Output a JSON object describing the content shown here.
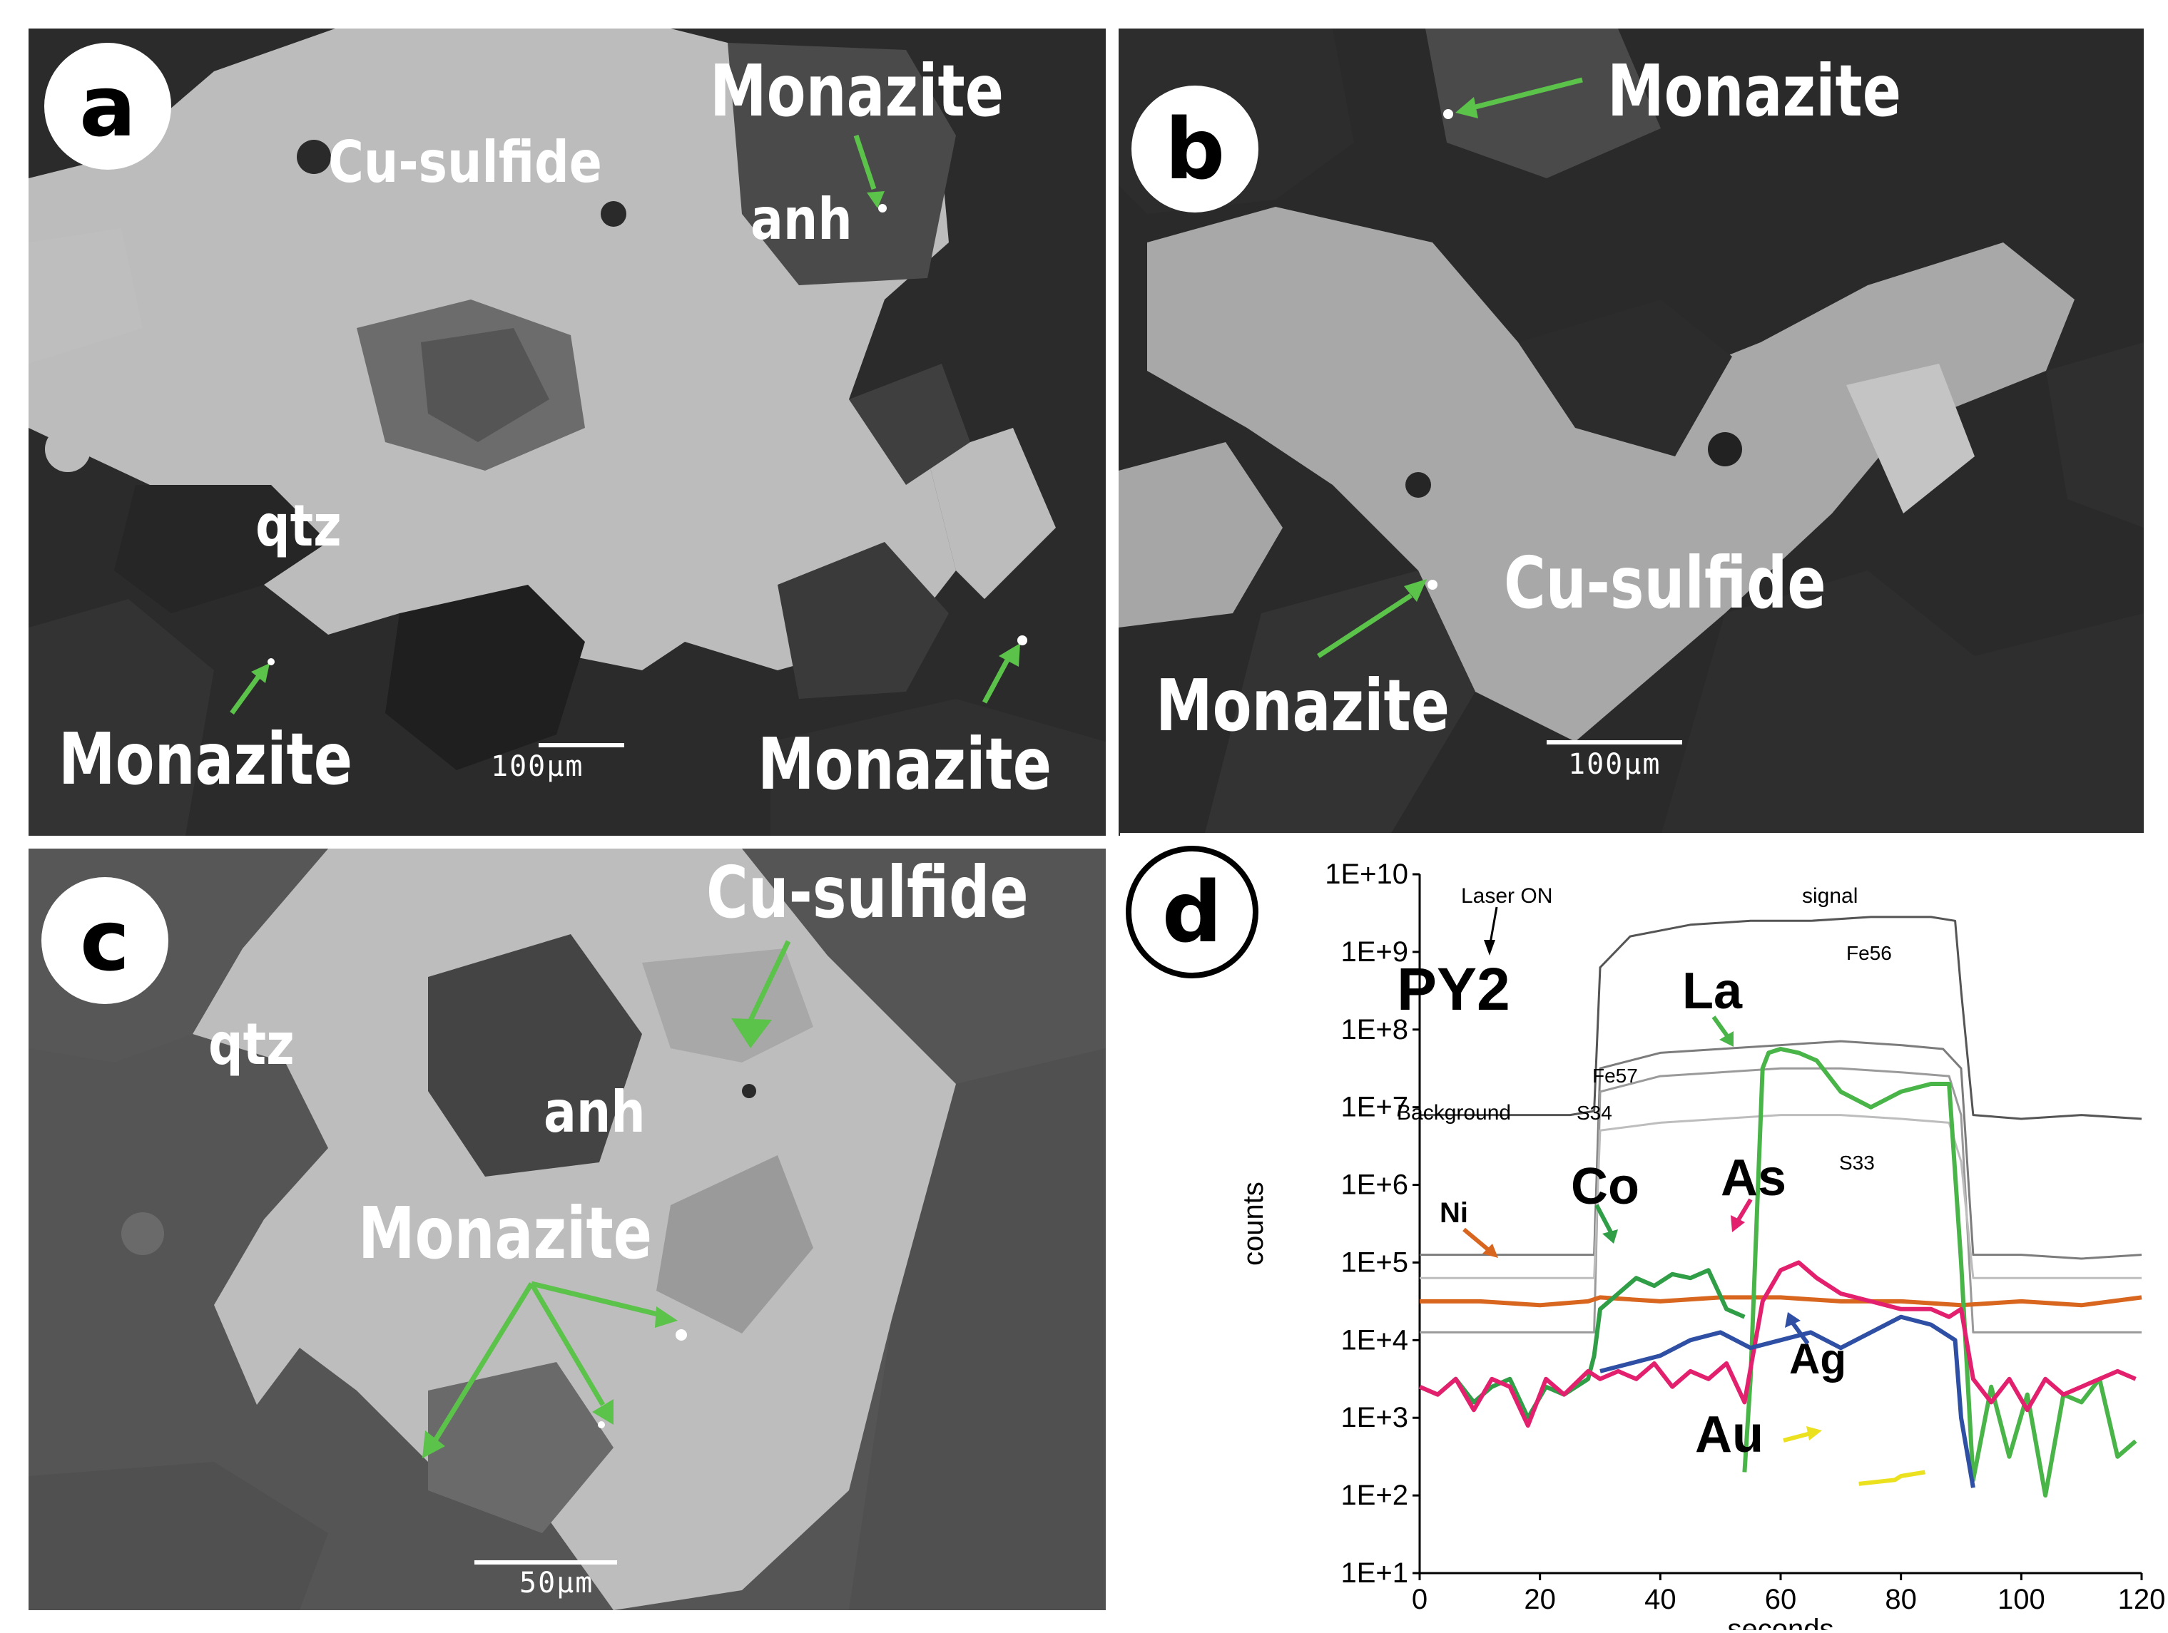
{
  "colors": {
    "label_text": "#ffffff",
    "arrow_green": "#5bc24a",
    "sulfide": "#bdbdbd",
    "dark_matrix": "#2c2c2c",
    "mid_grey": "#555555"
  },
  "panels": {
    "a": {
      "letter": "a",
      "labels": {
        "cu_sulfide": "Cu-sulfide",
        "monazite_top": "Monazite",
        "anh": "anh",
        "qtz": "qtz",
        "monazite_bl": "Monazite",
        "monazite_br": "Monazite"
      },
      "scale": "100μm"
    },
    "b": {
      "letter": "b",
      "labels": {
        "monazite_top": "Monazite",
        "cu_sulfide": "Cu-sulfide",
        "monazite_bl": "Monazite"
      },
      "scale": "100μm"
    },
    "c": {
      "letter": "c",
      "labels": {
        "cu_sulfide": "Cu-sulfide",
        "qtz": "qtz",
        "anh": "anh",
        "monazite": "Monazite"
      },
      "scale": "50μm"
    },
    "d": {
      "letter": "d",
      "sample": "PY2",
      "annotations": {
        "laser_on": "Laser ON",
        "signal": "signal",
        "background": "Background",
        "fe56": "Fe56",
        "fe57": "Fe57",
        "s34": "S34",
        "s33": "S33",
        "ni": "Ni",
        "co": "Co",
        "la": "La",
        "as": "As",
        "ag": "Ag",
        "au": "Au"
      }
    }
  },
  "chart_data": {
    "type": "line",
    "title": "",
    "xlabel": "seconds",
    "ylabel": "counts",
    "xlim": [
      0,
      120
    ],
    "ylim_log10": [
      1,
      10
    ],
    "log_y": true,
    "x_ticks": [
      "0",
      "20",
      "40",
      "60",
      "80",
      "100",
      "120"
    ],
    "y_ticks": [
      "1E+1",
      "1E+2",
      "1E+3",
      "1E+4",
      "1E+5",
      "1E+6",
      "1E+7",
      "1E+8",
      "1E+9",
      "1E+10"
    ],
    "series": [
      {
        "name": "Fe56",
        "color": "#555555",
        "x": [
          0,
          25,
          29,
          30,
          35,
          45,
          55,
          65,
          75,
          85,
          89,
          90,
          92,
          100,
          110,
          120
        ],
        "log10": [
          6.9,
          6.9,
          6.95,
          8.8,
          9.2,
          9.35,
          9.4,
          9.4,
          9.45,
          9.45,
          9.4,
          8.5,
          6.9,
          6.85,
          6.9,
          6.85
        ]
      },
      {
        "name": "Fe57",
        "color": "#7c7c7c",
        "x": [
          0,
          25,
          29,
          30,
          40,
          50,
          60,
          70,
          80,
          87,
          90,
          92,
          100,
          110,
          120
        ],
        "log10": [
          5.1,
          5.1,
          5.1,
          7.5,
          7.7,
          7.75,
          7.8,
          7.85,
          7.8,
          7.75,
          7.5,
          5.1,
          5.1,
          5.05,
          5.1
        ]
      },
      {
        "name": "S34",
        "color": "#9a9a9a",
        "x": [
          0,
          29,
          30,
          40,
          50,
          60,
          70,
          80,
          88,
          90,
          92,
          120
        ],
        "log10": [
          4.1,
          4.1,
          7.2,
          7.4,
          7.45,
          7.5,
          7.5,
          7.45,
          7.4,
          6.9,
          4.1,
          4.1
        ]
      },
      {
        "name": "S33",
        "color": "#bdbdbd",
        "x": [
          0,
          29,
          30,
          40,
          50,
          60,
          70,
          80,
          88,
          90,
          92,
          120
        ],
        "log10": [
          4.8,
          4.8,
          6.7,
          6.8,
          6.85,
          6.9,
          6.9,
          6.85,
          6.8,
          6.3,
          4.8,
          4.8
        ]
      },
      {
        "name": "Ni",
        "color": "#d9661f",
        "x": [
          0,
          10,
          20,
          28,
          30,
          40,
          50,
          60,
          70,
          80,
          90,
          100,
          110,
          120
        ],
        "log10": [
          4.5,
          4.5,
          4.45,
          4.5,
          4.55,
          4.5,
          4.55,
          4.55,
          4.5,
          4.5,
          4.45,
          4.5,
          4.45,
          4.55
        ]
      },
      {
        "name": "Co",
        "color": "#2f9e47",
        "x": [
          0,
          3,
          6,
          9,
          12,
          15,
          18,
          21,
          24,
          28,
          29,
          30,
          33,
          36,
          39,
          42,
          45,
          48,
          51,
          54
        ],
        "log10": [
          3.4,
          3.3,
          3.5,
          3.2,
          3.4,
          3.5,
          3.0,
          3.4,
          3.3,
          3.5,
          3.8,
          4.4,
          4.6,
          4.8,
          4.7,
          4.85,
          4.8,
          4.9,
          4.4,
          4.3
        ]
      },
      {
        "name": "La",
        "color": "#49b448",
        "x": [
          54,
          55,
          57,
          58,
          60,
          63,
          66,
          70,
          75,
          80,
          85,
          88,
          90,
          92,
          95,
          98,
          101,
          104,
          107,
          110,
          113,
          116,
          119
        ],
        "log10": [
          2.3,
          3.5,
          7.5,
          7.7,
          7.75,
          7.7,
          7.6,
          7.2,
          7.0,
          7.2,
          7.3,
          7.3,
          5.0,
          2.2,
          3.4,
          2.5,
          3.3,
          2.0,
          3.3,
          3.2,
          3.5,
          2.5,
          2.7
        ]
      },
      {
        "name": "As",
        "color": "#e3206e",
        "x": [
          0,
          3,
          6,
          9,
          12,
          15,
          18,
          21,
          24,
          28,
          30,
          33,
          36,
          39,
          42,
          45,
          48,
          51,
          54,
          57,
          60,
          63,
          66,
          70,
          75,
          80,
          85,
          88,
          90,
          92,
          95,
          98,
          101,
          104,
          107,
          110,
          113,
          116,
          119
        ],
        "log10": [
          3.4,
          3.3,
          3.5,
          3.1,
          3.5,
          3.4,
          2.9,
          3.5,
          3.3,
          3.6,
          3.5,
          3.6,
          3.5,
          3.7,
          3.4,
          3.6,
          3.5,
          3.7,
          3.2,
          4.5,
          4.9,
          5.0,
          4.8,
          4.6,
          4.5,
          4.4,
          4.4,
          4.3,
          4.4,
          3.5,
          3.2,
          3.5,
          3.1,
          3.5,
          3.3,
          3.4,
          3.5,
          3.6,
          3.5
        ]
      },
      {
        "name": "Ag",
        "color": "#2e4fa3",
        "x": [
          30,
          35,
          40,
          45,
          50,
          55,
          60,
          65,
          70,
          75,
          80,
          85,
          89,
          90,
          92
        ],
        "log10": [
          3.6,
          3.7,
          3.8,
          4.0,
          4.1,
          3.9,
          4.0,
          4.1,
          3.9,
          4.1,
          4.3,
          4.2,
          4.0,
          3.0,
          2.1
        ]
      },
      {
        "name": "Au",
        "color": "#ece11e",
        "x": [
          73,
          79,
          80,
          84
        ],
        "log10": [
          2.15,
          2.2,
          2.25,
          2.3
        ]
      }
    ]
  }
}
